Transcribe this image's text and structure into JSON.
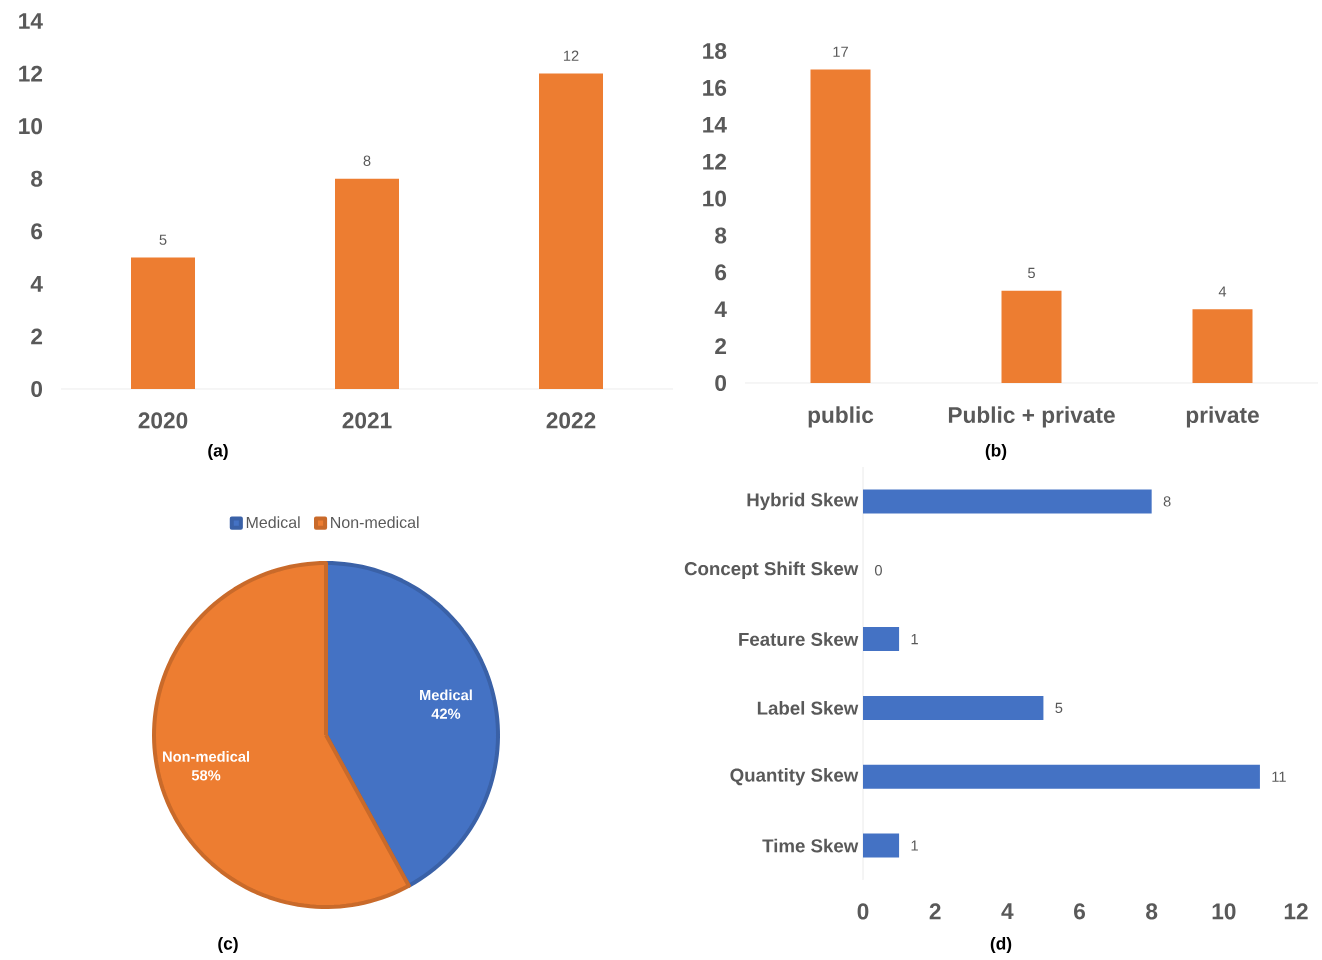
{
  "chart_data": [
    {
      "type": "bar",
      "categories": [
        "2020",
        "2021",
        "2022"
      ],
      "values": [
        5,
        8,
        12
      ],
      "color": "#ed7d31",
      "ylim": [
        0,
        14
      ],
      "yticks": [
        0,
        2,
        4,
        6,
        8,
        10,
        12,
        14
      ],
      "data_labels": true,
      "annotations": [
        "(a)"
      ]
    },
    {
      "type": "bar",
      "categories": [
        "public",
        "Public + private",
        "private"
      ],
      "values": [
        17,
        5,
        4
      ],
      "color": "#ed7d31",
      "ylim": [
        0,
        18
      ],
      "yticks": [
        0,
        2,
        4,
        6,
        8,
        10,
        12,
        14,
        16,
        18
      ],
      "data_labels": true,
      "annotations": [
        "(b)"
      ]
    },
    {
      "type": "pie",
      "categories": [
        "Medical",
        "Non-medical"
      ],
      "values": [
        42,
        58
      ],
      "colors": [
        "#4472c4",
        "#ed7d31"
      ],
      "value_labels": [
        "42%",
        "58%"
      ],
      "legend": "top",
      "annotations": [
        "(c)"
      ]
    },
    {
      "type": "bar",
      "orientation": "horizontal",
      "categories": [
        "Hybrid Skew",
        "Concept Shift Skew",
        "Feature Skew",
        "Label Skew",
        "Quantity Skew",
        "Time Skew"
      ],
      "values": [
        8,
        0,
        1,
        5,
        11,
        1
      ],
      "color": "#4472c4",
      "xlim": [
        0,
        12
      ],
      "xticks": [
        0,
        2,
        4,
        6,
        8,
        10,
        12
      ],
      "data_labels": true,
      "annotations": [
        "(d)"
      ]
    }
  ]
}
